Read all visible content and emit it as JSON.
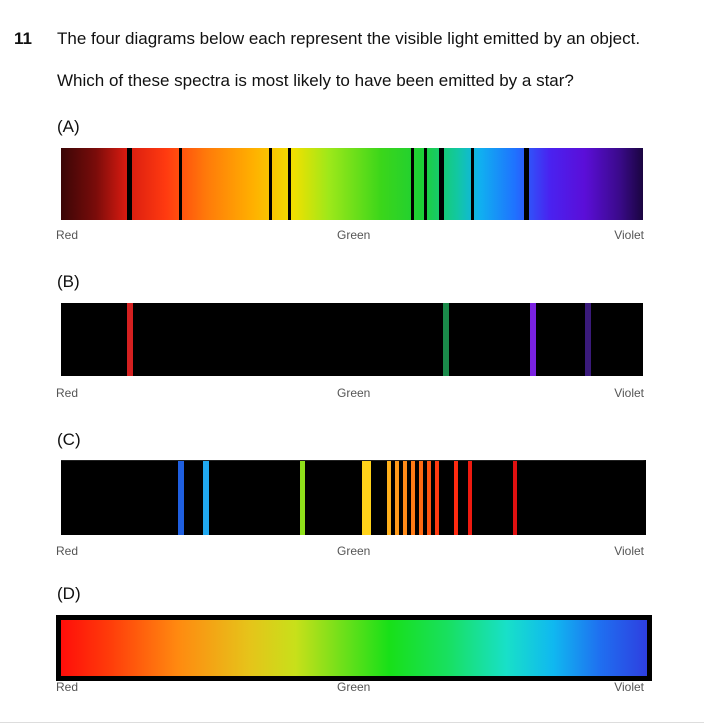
{
  "question": {
    "number": "11",
    "line1": "The four diagrams below each represent the visible light emitted by an object.",
    "line2": "Which of these spectra is most likely to have been emitted by a star?"
  },
  "axis_labels": {
    "red": "Red",
    "green": "Green",
    "violet": "Violet"
  },
  "options": [
    {
      "label": "(A)",
      "type": "continuous spectrum with dark absorption lines"
    },
    {
      "label": "(B)",
      "type": "emission lines",
      "line_colors": [
        "#d42020",
        "#1a8a4a",
        "#7a22e0",
        "#3a1a7a"
      ]
    },
    {
      "label": "(C)",
      "type": "emission lines",
      "line_colors": [
        "#1f5fe0",
        "#20a8f0",
        "#8fe01a",
        "#ffd21a",
        "#ff9a1a",
        "#ff7a10",
        "#ff2a10",
        "#e01010"
      ]
    },
    {
      "label": "(D)",
      "type": "continuous spectrum"
    }
  ]
}
